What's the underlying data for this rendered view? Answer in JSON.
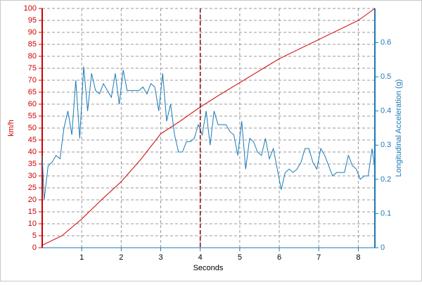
{
  "chart_data": {
    "type": "line",
    "xlabel": "Seconds",
    "ylabel": "km/h",
    "y2label": "Longitudinal Acceleration (g)",
    "xlim": [
      0,
      8.42
    ],
    "xticks": [
      1,
      2,
      3,
      4,
      5,
      6,
      7,
      8
    ],
    "ylim": [
      0,
      100
    ],
    "yticks": [
      0,
      5,
      10,
      15,
      20,
      25,
      30,
      35,
      40,
      45,
      50,
      55,
      60,
      65,
      70,
      75,
      80,
      85,
      90,
      95,
      100
    ],
    "y2lim": [
      0,
      0.7
    ],
    "y2ticks": [
      0,
      0.1,
      0.2,
      0.3,
      0.4,
      0.5,
      0.6
    ],
    "grid": true,
    "cursor_x": 4,
    "cursor_color": "#8b0000",
    "y_color": "#cc0000",
    "y2_color": "#1a7ab8",
    "series": [
      {
        "color": "#cc0000",
        "x": [
          0,
          0.5,
          1,
          1.5,
          2,
          2.5,
          3,
          3.5,
          4,
          4.5,
          5,
          5.5,
          6,
          6.5,
          7,
          7.5,
          8,
          8.42
        ],
        "values": [
          1,
          5,
          12,
          20,
          27.6,
          37,
          47.6,
          53,
          58.8,
          64,
          69,
          74,
          79,
          83,
          87,
          91,
          95,
          100
        ]
      },
      {
        "color": "#1a7ab8",
        "axis": "y2",
        "x": [
          0,
          0.05,
          0.15,
          0.25,
          0.35,
          0.45,
          0.55,
          0.65,
          0.75,
          0.85,
          0.95,
          1.05,
          1.15,
          1.25,
          1.35,
          1.45,
          1.55,
          1.65,
          1.75,
          1.85,
          1.95,
          2.05,
          2.15,
          2.25,
          2.35,
          2.45,
          2.55,
          2.65,
          2.75,
          2.85,
          2.95,
          3.05,
          3.15,
          3.25,
          3.35,
          3.45,
          3.55,
          3.65,
          3.75,
          3.85,
          3.95,
          4.05,
          4.15,
          4.25,
          4.35,
          4.45,
          4.55,
          4.65,
          4.75,
          4.85,
          4.95,
          5.05,
          5.15,
          5.25,
          5.35,
          5.45,
          5.55,
          5.65,
          5.75,
          5.85,
          5.95,
          6.05,
          6.15,
          6.25,
          6.35,
          6.45,
          6.55,
          6.65,
          6.75,
          6.85,
          6.95,
          7.05,
          7.15,
          7.25,
          7.35,
          7.45,
          7.55,
          7.65,
          7.75,
          7.85,
          7.95,
          8.05,
          8.15,
          8.25,
          8.35,
          8.42
        ],
        "values": [
          0.27,
          0.14,
          0.24,
          0.25,
          0.27,
          0.26,
          0.35,
          0.4,
          0.33,
          0.49,
          0.32,
          0.53,
          0.4,
          0.51,
          0.46,
          0.45,
          0.48,
          0.46,
          0.44,
          0.51,
          0.42,
          0.52,
          0.46,
          0.46,
          0.46,
          0.46,
          0.47,
          0.45,
          0.48,
          0.47,
          0.4,
          0.51,
          0.37,
          0.42,
          0.33,
          0.28,
          0.28,
          0.31,
          0.31,
          0.32,
          0.36,
          0.33,
          0.4,
          0.3,
          0.4,
          0.36,
          0.36,
          0.36,
          0.34,
          0.33,
          0.27,
          0.37,
          0.23,
          0.32,
          0.31,
          0.28,
          0.27,
          0.32,
          0.26,
          0.29,
          0.23,
          0.17,
          0.22,
          0.23,
          0.22,
          0.23,
          0.25,
          0.29,
          0.29,
          0.25,
          0.23,
          0.29,
          0.27,
          0.24,
          0.21,
          0.22,
          0.22,
          0.22,
          0.27,
          0.24,
          0.23,
          0.2,
          0.21,
          0.21,
          0.29,
          0.23
        ]
      }
    ]
  }
}
